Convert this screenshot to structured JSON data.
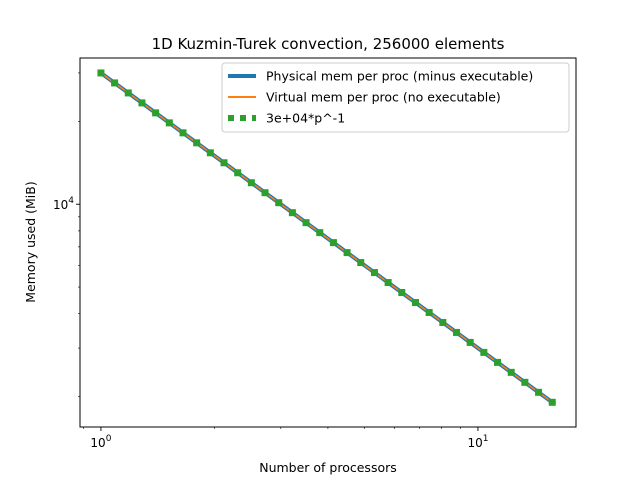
{
  "chart_data": {
    "type": "line",
    "title": "1D Kuzmin-Turek convection, 256000 elements",
    "xlabel": "Number of processors",
    "ylabel": "Memory used (MiB)",
    "xscale": "log",
    "yscale": "log",
    "xlim": [
      0.88,
      18.2
    ],
    "ylim": [
      1550,
      34000
    ],
    "x_ticks": [
      {
        "value": 1,
        "base": "10",
        "exp": "0"
      },
      {
        "value": 10,
        "base": "10",
        "exp": "1"
      }
    ],
    "y_ticks": [
      {
        "value": 10000,
        "base": "10",
        "exp": "4"
      }
    ],
    "legend_position": "top-right",
    "series": [
      {
        "name": "Physical mem per proc (minus executable)",
        "style": "solid-thick",
        "color": "#1f77b4",
        "x": [
          1,
          16
        ],
        "y": [
          30000,
          1875
        ]
      },
      {
        "name": "Virtual mem per proc (no executable)",
        "style": "solid",
        "color": "#ff7f0e",
        "x": [
          1,
          16
        ],
        "y": [
          30000,
          1875
        ]
      },
      {
        "name": "3e+04*p^-1",
        "style": "dotted",
        "color": "#2ca02c",
        "x": [
          1,
          16
        ],
        "y": [
          30000,
          1875
        ]
      }
    ],
    "marker_points_x": [
      1,
      1.087,
      1.1818,
      1.2847,
      1.3966,
      1.5183,
      1.6506,
      1.7944,
      1.9507,
      2.1206,
      2.3053,
      2.5061,
      2.7244,
      2.9618,
      3.2197,
      3.5002,
      3.8051,
      4.1365,
      4.4968,
      4.8885,
      5.3144,
      5.7773,
      6.2805,
      6.8276,
      7.4223,
      8.0689,
      8.7717,
      9.5358,
      10.3664,
      11.2694,
      12.251,
      13.3182,
      14.4783,
      15.7394
    ],
    "marker_series_index": 2
  }
}
